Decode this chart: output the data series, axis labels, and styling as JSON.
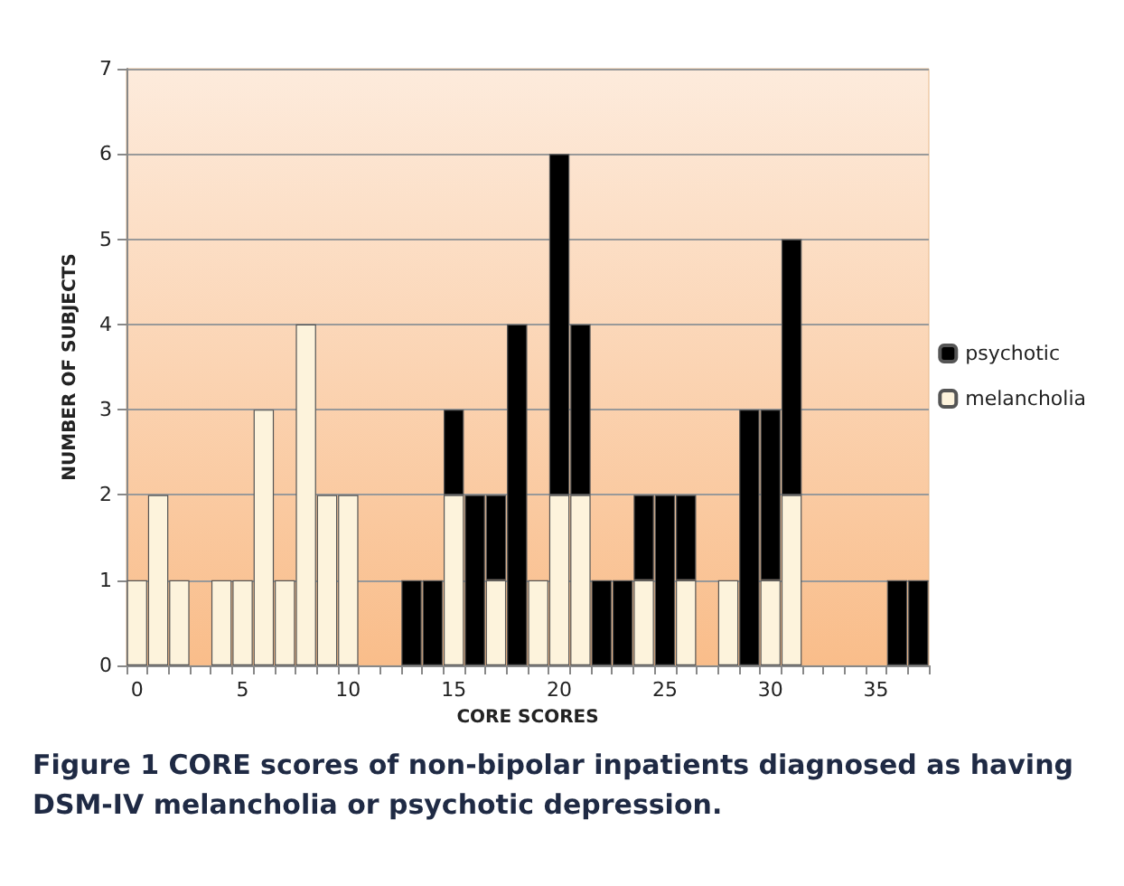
{
  "chart_data": {
    "type": "bar",
    "stacked": true,
    "categories": [
      "0",
      null,
      null,
      null,
      null,
      "5",
      null,
      null,
      null,
      null,
      "10",
      null,
      null,
      null,
      null,
      "15",
      null,
      null,
      null,
      null,
      "20",
      null,
      null,
      null,
      null,
      "25",
      null,
      null,
      null,
      null,
      "30",
      null,
      null,
      null,
      null,
      "35",
      null,
      null
    ],
    "series": [
      {
        "name": "melancholia",
        "color": "#fdf3dc",
        "values": [
          1,
          2,
          1,
          null,
          1,
          1,
          3,
          1,
          4,
          2,
          2,
          null,
          null,
          null,
          null,
          2,
          null,
          1,
          null,
          1,
          2,
          2,
          null,
          null,
          1,
          null,
          1,
          null,
          1,
          null,
          1,
          2,
          null,
          null,
          null,
          null,
          null,
          null
        ]
      },
      {
        "name": "psychotic",
        "color": "#000000",
        "values": [
          null,
          null,
          null,
          null,
          null,
          null,
          null,
          null,
          null,
          null,
          null,
          null,
          null,
          1,
          1,
          1,
          2,
          1,
          4,
          null,
          4,
          2,
          1,
          1,
          1,
          2,
          1,
          null,
          null,
          3,
          2,
          3,
          null,
          null,
          null,
          null,
          1,
          1
        ]
      }
    ],
    "ylim": [
      0,
      7
    ],
    "yticks": [
      0,
      1,
      2,
      3,
      4,
      5,
      6,
      7
    ],
    "grid": "y",
    "legend": "right",
    "xlabel": "CORE SCORES",
    "ylabel": "NUMBER OF SUBJECTS",
    "annotations": [
      "Figure 1 CORE scores of non-bipolar inpatients diagnosed as having DSM-IV melancholia or psychotic depression."
    ]
  }
}
